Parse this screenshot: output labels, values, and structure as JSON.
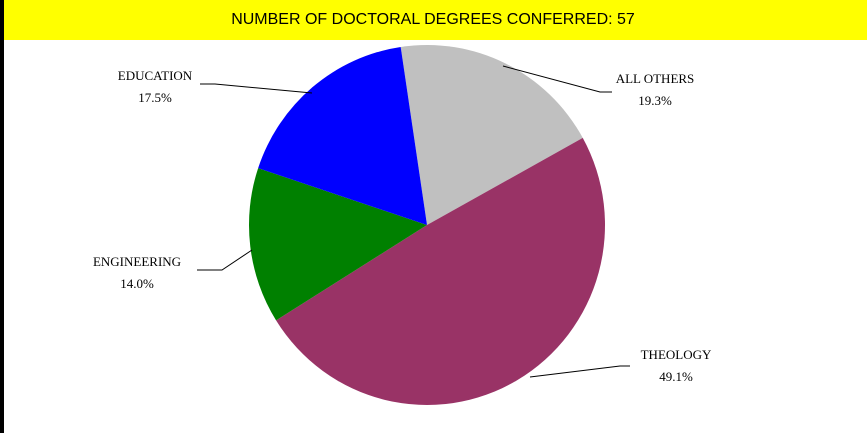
{
  "chart_data": {
    "type": "pie",
    "title": "NUMBER OF DOCTORAL DEGREES CONFERRED: 57",
    "categories": [
      "ALL OTHERS",
      "THEOLOGY",
      "ENGINEERING",
      "EDUCATION"
    ],
    "values": [
      19.3,
      49.1,
      14.0,
      17.5
    ],
    "value_labels": [
      "19.3%",
      "49.1%",
      "14.0%",
      "17.5%"
    ],
    "colors": [
      "#c0c0c0",
      "#993366",
      "#008000",
      "#0000ff"
    ]
  }
}
